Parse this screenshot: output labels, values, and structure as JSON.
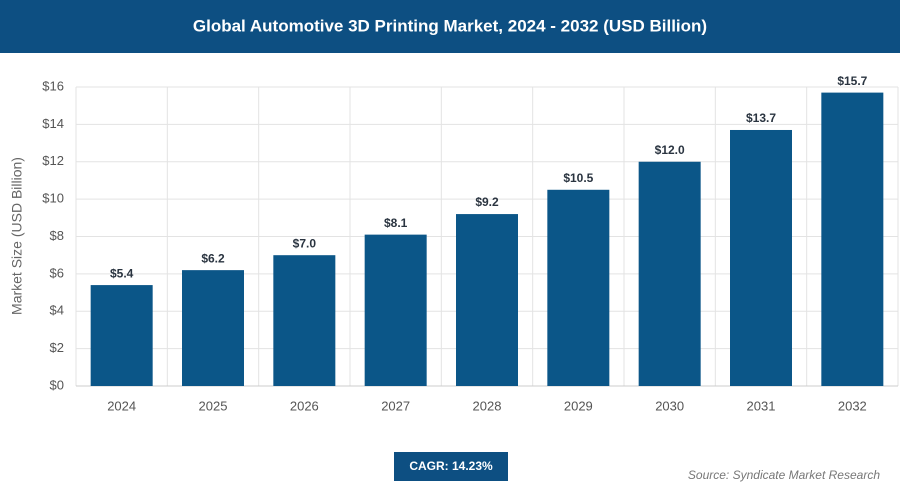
{
  "chart_data": {
    "type": "bar",
    "title": "Global Automotive 3D Printing Market, 2024 - 2032 (USD Billion)",
    "y_label": "Market Size (USD Billion)",
    "categories": [
      "2024",
      "2025",
      "2026",
      "2027",
      "2028",
      "2029",
      "2030",
      "2031",
      "2032"
    ],
    "values": [
      5.4,
      6.2,
      7.0,
      8.1,
      9.2,
      10.5,
      12.0,
      13.7,
      15.7
    ],
    "value_labels": [
      "$5.4",
      "$6.2",
      "$7.0",
      "$8.1",
      "$9.2",
      "$10.5",
      "$12.0",
      "$13.7",
      "$15.7"
    ],
    "color": "#0b5688",
    "ylim": [
      0,
      16
    ],
    "yticks": [
      {
        "value": 0,
        "label": "$0"
      },
      {
        "value": 2,
        "label": "$2"
      },
      {
        "value": 4,
        "label": "$4"
      },
      {
        "value": 6,
        "label": "$6"
      },
      {
        "value": 8,
        "label": "$8"
      },
      {
        "value": 10,
        "label": "$10"
      },
      {
        "value": 12,
        "label": "$12"
      },
      {
        "value": 14,
        "label": "$14"
      },
      {
        "value": 16,
        "label": "$16"
      }
    ],
    "grid": true,
    "cagr": "CAGR: 14.23%",
    "source": "Source: Syndicate Market Research"
  }
}
